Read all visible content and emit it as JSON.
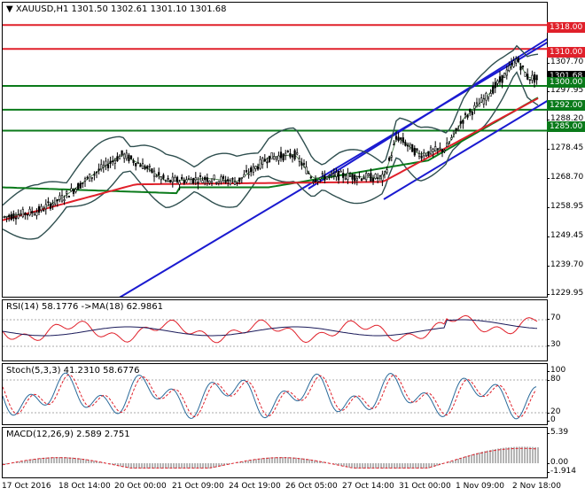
{
  "main": {
    "header": "XAUUSD,H1  1301.50 1302.61 1301.10 1301.68",
    "price_ticks": [
      "1307.70",
      "1297.95",
      "1288.20",
      "1278.45",
      "1268.70",
      "1258.95",
      "1249.45",
      "1239.70",
      "1229.95"
    ],
    "levels": [
      {
        "label": "1318.00",
        "color": "#e0202a"
      },
      {
        "label": "1310.00",
        "color": "#e0202a"
      },
      {
        "label": "1300.00",
        "color": "#0a7a1a"
      },
      {
        "label": "1292.00",
        "color": "#0a7a1a"
      },
      {
        "label": "1285.00",
        "color": "#0a7a1a"
      }
    ],
    "current_price": "1301.68"
  },
  "rsi": {
    "header": "RSI(14) 58.1776  ->MA(18) 62.9861",
    "ticks": [
      "70",
      "30"
    ]
  },
  "stoch": {
    "header": "Stoch(5,3,3) 41.2310 58.6776",
    "ticks": [
      "100",
      "80",
      "20",
      "0"
    ]
  },
  "macd": {
    "header": "MACD(12,26,9) 2.589 2.751",
    "ticks": [
      "5.39",
      "0.00",
      "-1.914"
    ]
  },
  "time_axis": [
    "17 Oct 2016",
    "18 Oct 14:00",
    "20 Oct 00:00",
    "21 Oct 09:00",
    "24 Oct 19:00",
    "26 Oct 05:00",
    "27 Oct 14:00",
    "31 Oct 00:00",
    "1 Nov 09:00",
    "2 Nov 18:00"
  ],
  "colors": {
    "up_candle": "#000000",
    "ema_green": "#0a7a1a",
    "ma_red": "#e0202a",
    "bands": "#2f4f4f",
    "trend": "#1a1ad0",
    "level_red": "#e0202a",
    "level_green": "#0a7a1a"
  }
}
